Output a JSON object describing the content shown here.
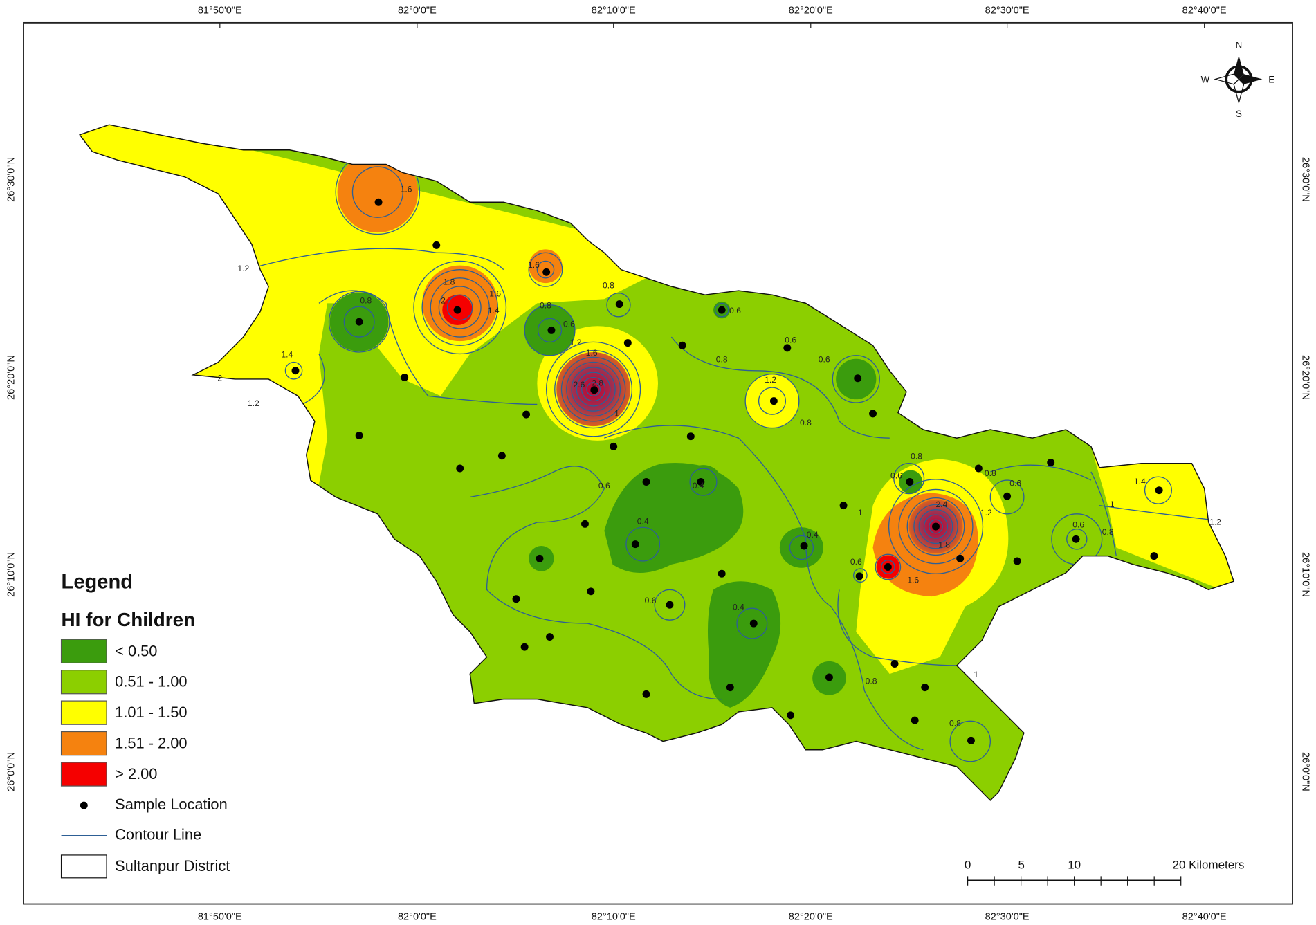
{
  "map": {
    "top_labels": [
      "81°50'0\"E",
      "82°0'0\"E",
      "82°10'0\"E",
      "82°20'0\"E",
      "82°30'0\"E",
      "82°40'0\"E"
    ],
    "bottom_labels": [
      "81°50'0\"E",
      "82°0'0\"E",
      "82°10'0\"E",
      "82°20'0\"E",
      "82°30'0\"E",
      "82°40'0\"E"
    ],
    "left_labels": [
      "26°30'0\"N",
      "26°20'0\"N",
      "26°10'0\"N",
      "26°0'0\"N"
    ],
    "right_labels": [
      "26°30'0\"N",
      "26°20'0\"N",
      "26°10'0\"N",
      "26°0'0\"N"
    ],
    "compass": {
      "n": "N",
      "s": "S",
      "e": "E",
      "w": "W"
    },
    "legend": {
      "title": "Legend",
      "subtitle": "HI for Children",
      "items": [
        {
          "label": "< 0.50",
          "color": "#3b9c0d"
        },
        {
          "label": "0.51 - 1.00",
          "color": "#8ccf00"
        },
        {
          "label": "1.01 - 1.50",
          "color": "#ffff00"
        },
        {
          "label": "1.51 - 2.00",
          "color": "#f5820f"
        },
        {
          "label": "> 2.00",
          "color": "#f50000"
        }
      ],
      "sample": "Sample Location",
      "contour": "Contour Line",
      "district": "Sultanpur District"
    },
    "scale": {
      "labels": [
        "0",
        "5",
        "10",
        "20 Kilometers"
      ]
    },
    "contour_labels": [
      "1.6",
      "1.2",
      "1.8",
      "2",
      "1.6",
      "1.4",
      "1.6",
      "0.8",
      "0.6",
      "1.2",
      "1.6",
      "2.6",
      "2.8",
      "0.8",
      "1.4",
      "1.2",
      "2",
      "0.8",
      "0.6",
      "0.6",
      "1.2",
      "0.8",
      "0.8",
      "0.6",
      "0.8",
      "2.4",
      "1.8",
      "1.6",
      "0.6",
      "1.2",
      "0.6",
      "0.8",
      "1.4",
      "1",
      "1.2",
      "0.4",
      "0.6",
      "0.6",
      "0.4",
      "0.4",
      "0.8",
      "1",
      "1",
      "0.8",
      "1",
      "0.4",
      "0.6",
      "0.8",
      "0.6"
    ]
  }
}
